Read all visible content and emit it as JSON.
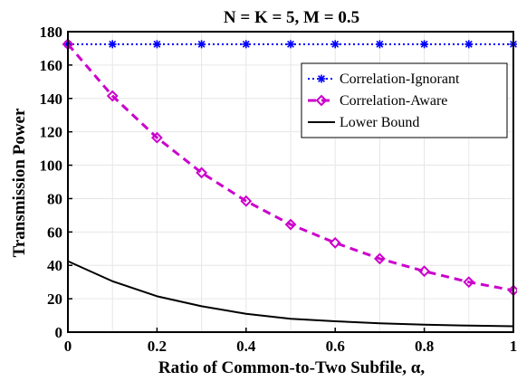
{
  "chart_data": {
    "type": "line",
    "title": "N = K = 5, M = 0.5",
    "xlabel": "Ratio of Common-to-Two Subfile, α,",
    "ylabel": "Transmission Power",
    "xlim": [
      0,
      1
    ],
    "ylim": [
      0,
      180
    ],
    "x_ticks": [
      "0",
      "0.2",
      "0.4",
      "0.6",
      "0.8",
      "1"
    ],
    "y_ticks": [
      "0",
      "20",
      "40",
      "60",
      "80",
      "100",
      "120",
      "140",
      "160",
      "180"
    ],
    "grid": true,
    "legend_position": "top-right",
    "x": [
      0,
      0.1,
      0.2,
      0.3,
      0.4,
      0.5,
      0.6,
      0.7,
      0.8,
      0.9,
      1.0
    ],
    "series": [
      {
        "name": "Correlation-Ignorant",
        "color": "#0000ff",
        "line_style": "dotted",
        "marker": "asterisk",
        "values": [
          172.5,
          172.5,
          172.5,
          172.5,
          172.5,
          172.5,
          172.5,
          172.5,
          172.5,
          172.5,
          172.5
        ]
      },
      {
        "name": "Correlation-Aware",
        "color": "#cc00cc",
        "line_style": "dashed",
        "marker": "diamond",
        "values": [
          172.5,
          141.5,
          116.5,
          95.5,
          78.5,
          64.5,
          53.5,
          44,
          36.5,
          30,
          25
        ]
      },
      {
        "name": "Lower Bound",
        "color": "#000000",
        "line_style": "solid",
        "marker": "none",
        "values": [
          42.5,
          30.5,
          21.5,
          15.5,
          11,
          8,
          6.5,
          5.3,
          4.5,
          3.9,
          3.5
        ]
      }
    ]
  }
}
